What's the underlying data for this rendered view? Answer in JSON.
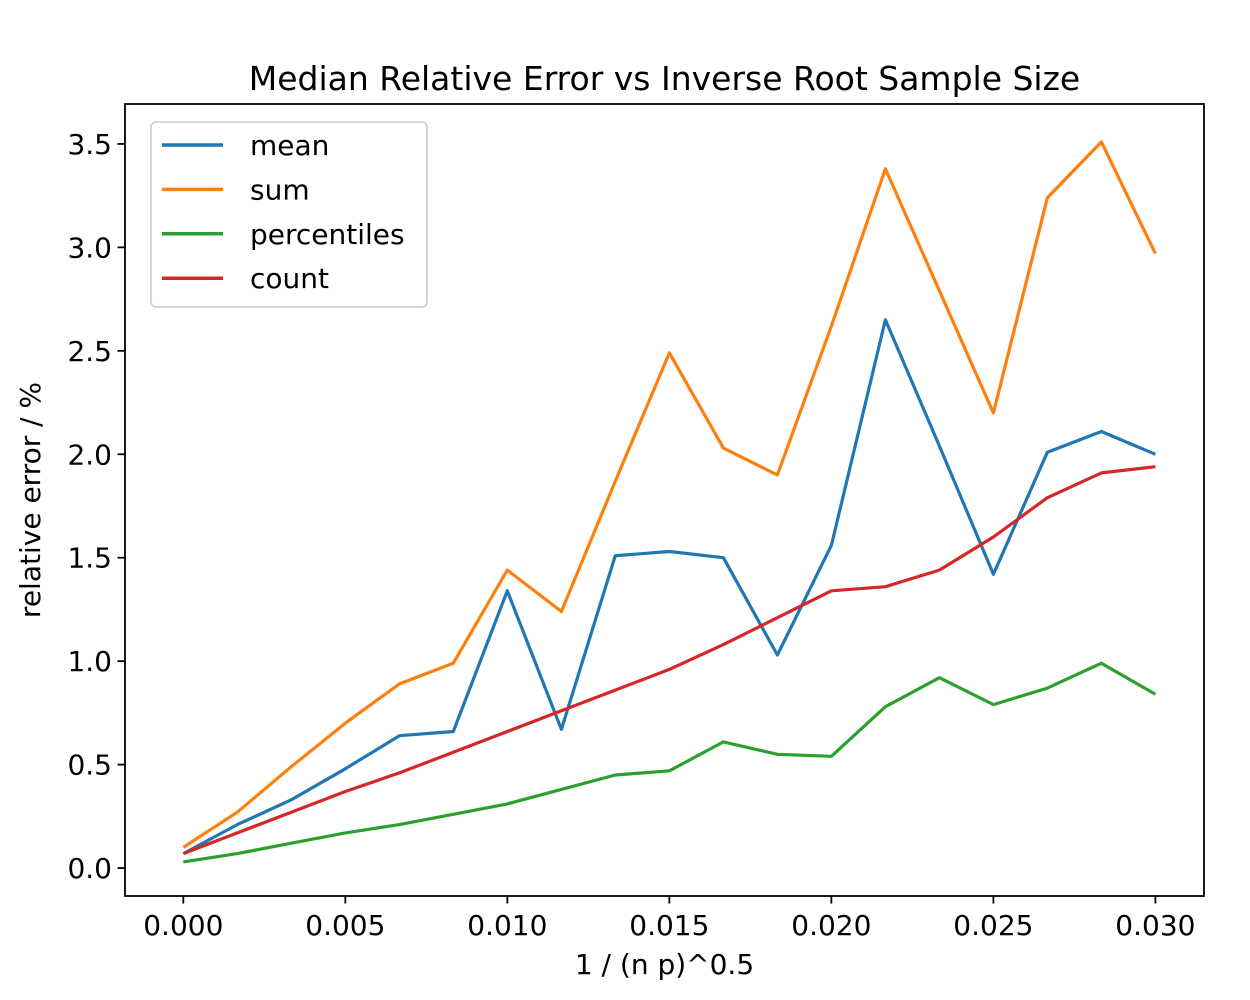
{
  "chart_data": {
    "type": "line",
    "title": "Median Relative Error vs Inverse Root Sample Size",
    "xlabel": "1 / (n p)^0.5",
    "ylabel": "relative error / %",
    "grid": false,
    "legend_position": "upper left",
    "xlim": [
      -0.0018,
      0.0315
    ],
    "ylim": [
      -0.135,
      3.693
    ],
    "x_ticks": {
      "values": [
        0,
        0.005,
        0.01,
        0.015,
        0.02,
        0.025,
        0.03
      ],
      "labels": [
        "0.000",
        "0.005",
        "0.010",
        "0.015",
        "0.020",
        "0.025",
        "0.030"
      ]
    },
    "y_ticks": {
      "values": [
        0,
        0.5,
        1,
        1.5,
        2,
        2.5,
        3,
        3.5
      ],
      "labels": [
        "0.0",
        "0.5",
        "1.0",
        "1.5",
        "2.0",
        "2.5",
        "3.0",
        "3.5"
      ]
    },
    "x": [
      0.0,
      0.001667,
      0.003333,
      0.005,
      0.006667,
      0.008333,
      0.01,
      0.011667,
      0.013333,
      0.015,
      0.016667,
      0.018333,
      0.02,
      0.021667,
      0.023333,
      0.025,
      0.026667,
      0.028333,
      0.03
    ],
    "series": [
      {
        "name": "mean",
        "color": "#1f77b4",
        "values": [
          0.07,
          0.21,
          0.33,
          0.48,
          0.64,
          0.66,
          1.34,
          0.67,
          1.51,
          1.53,
          1.5,
          1.03,
          1.56,
          2.65,
          2.04,
          1.42,
          2.01,
          2.11,
          2.0
        ]
      },
      {
        "name": "sum",
        "color": "#ff7f0e",
        "values": [
          0.1,
          0.27,
          0.49,
          0.7,
          0.89,
          0.99,
          1.44,
          1.24,
          1.87,
          2.49,
          2.03,
          1.9,
          2.62,
          3.38,
          2.79,
          2.2,
          3.24,
          3.51,
          2.97
        ]
      },
      {
        "name": "percentiles",
        "color": "#2ca02c",
        "values": [
          0.03,
          0.07,
          0.12,
          0.17,
          0.21,
          0.26,
          0.31,
          0.38,
          0.45,
          0.47,
          0.61,
          0.55,
          0.54,
          0.78,
          0.92,
          0.79,
          0.87,
          0.99,
          0.84
        ]
      },
      {
        "name": "count",
        "color": "#d62728",
        "values": [
          0.07,
          0.17,
          0.27,
          0.37,
          0.46,
          0.56,
          0.66,
          0.76,
          0.86,
          0.96,
          1.08,
          1.21,
          1.34,
          1.36,
          1.44,
          1.6,
          1.79,
          1.91,
          1.94
        ]
      }
    ],
    "style": {
      "line_width": 3.2,
      "spine_color": "#000000",
      "legend_border_color": "#cccccc",
      "legend_background": "#ffffff"
    }
  }
}
